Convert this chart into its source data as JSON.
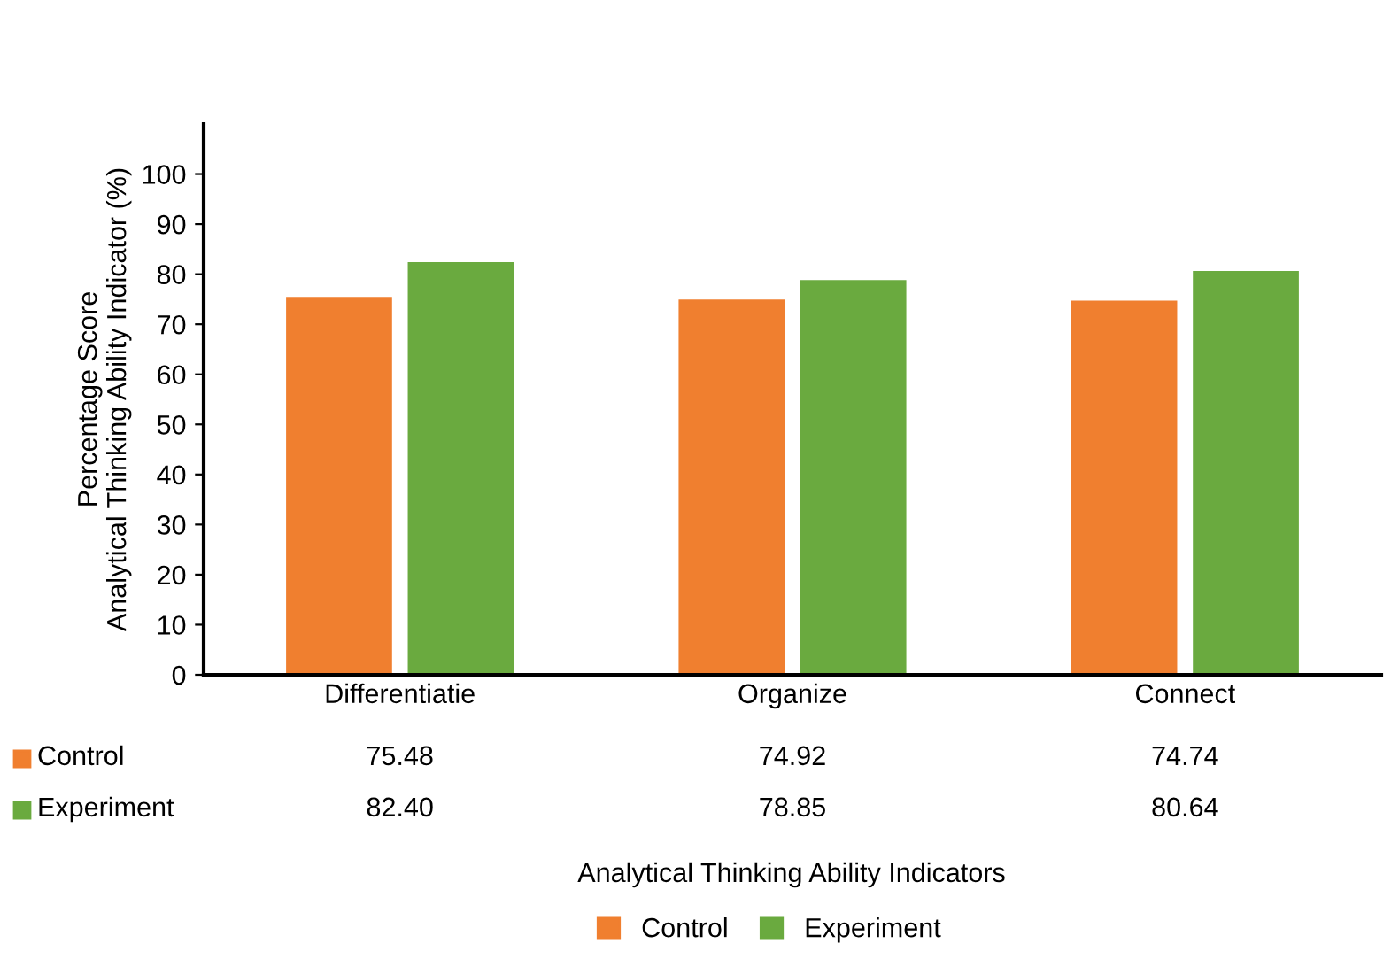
{
  "chart_data": {
    "type": "bar",
    "annotations": [
      "Analytical Thinking Ability Indicators"
    ],
    "ylabel": "Percentage Score\nAnalytical Thinking Ability Indicator (%)",
    "categories": [
      "Differentiatie",
      "Organize",
      "Connect"
    ],
    "series": [
      {
        "name": "Control",
        "color": "#f07f2f",
        "values": [
          75.48,
          74.92,
          74.74
        ],
        "value_labels": [
          "75.48",
          "74.92",
          "74.74"
        ]
      },
      {
        "name": "Experiment",
        "color": "#6aaa3f",
        "values": [
          82.4,
          78.85,
          80.64
        ],
        "value_labels": [
          "82.40",
          "78.85",
          "80.64"
        ]
      }
    ],
    "ylim": [
      0,
      110
    ],
    "yticks": [
      0,
      10,
      20,
      30,
      40,
      50,
      60,
      70,
      80,
      90,
      100
    ],
    "grid": false,
    "legend": "bottom"
  }
}
